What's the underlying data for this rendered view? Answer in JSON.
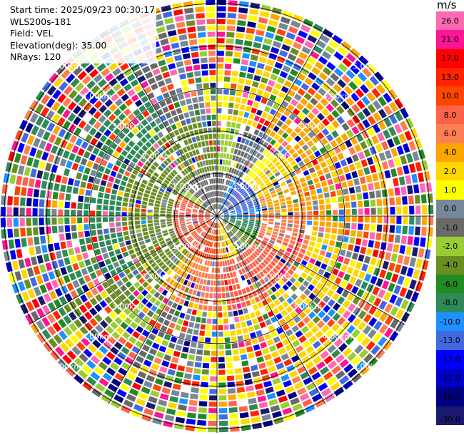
{
  "header": {
    "start_time": "Start time: 2025/09/23 00:30:17",
    "instrument": "WLS200s-181",
    "field": "Field: VEL",
    "elevation": "Elevation(deg): 35.00",
    "nrays": "NRays: 120"
  },
  "colorbar": {
    "unit": "m/s",
    "levels": [
      "26.0",
      "21.0",
      "17.0",
      "13.0",
      "10.0",
      "8.0",
      "6.0",
      "4.0",
      "2.0",
      "1.0",
      "0.0",
      "-1.0",
      "-2.0",
      "-4.0",
      "-6.0",
      "-8.0",
      "-10.0",
      "-13.0",
      "-17.0",
      "-21.0",
      "-26.0",
      "-30.0"
    ],
    "colors": [
      "#ff69b4",
      "#ff1493",
      "#ff0000",
      "#ff2400",
      "#ff4500",
      "#ff6347",
      "#ff7f50",
      "#ffa500",
      "#ffd700",
      "#ffff00",
      "#778899",
      "#696969",
      "#9acd32",
      "#6b8e23",
      "#228b22",
      "#2e8b57",
      "#1e90ff",
      "#4169e1",
      "#0000ff",
      "#0000cd",
      "#000080",
      "#191970"
    ]
  },
  "chart_data": {
    "type": "heatmap",
    "subtype": "PPI polar radar display",
    "field": "VEL",
    "units": "m/s",
    "nrays": 120,
    "elevation_deg": 35.0,
    "range_ring_labels": [
      "1.00km",
      "2.00km",
      "3.00km",
      "4.00km",
      "5.00km"
    ],
    "range_rings_km": [
      1,
      2,
      3,
      4,
      5
    ],
    "max_range_km": 5.1,
    "spokes_deg": [
      0,
      30,
      60,
      90,
      120,
      150,
      180,
      210,
      240,
      270,
      300,
      330
    ],
    "regions": [
      {
        "area": "near range north-east",
        "approx_velocity": -10.0
      },
      {
        "area": "near range south-west",
        "approx_velocity": 13.0
      },
      {
        "area": "mid range south",
        "approx_velocity": 2.0
      },
      {
        "area": "west sector",
        "approx_velocity": -6.0
      },
      {
        "area": "east sector far range",
        "approx_velocity": 4.0
      },
      {
        "area": "outer ranges",
        "approx_velocity": "noisy / mixed"
      }
    ]
  }
}
